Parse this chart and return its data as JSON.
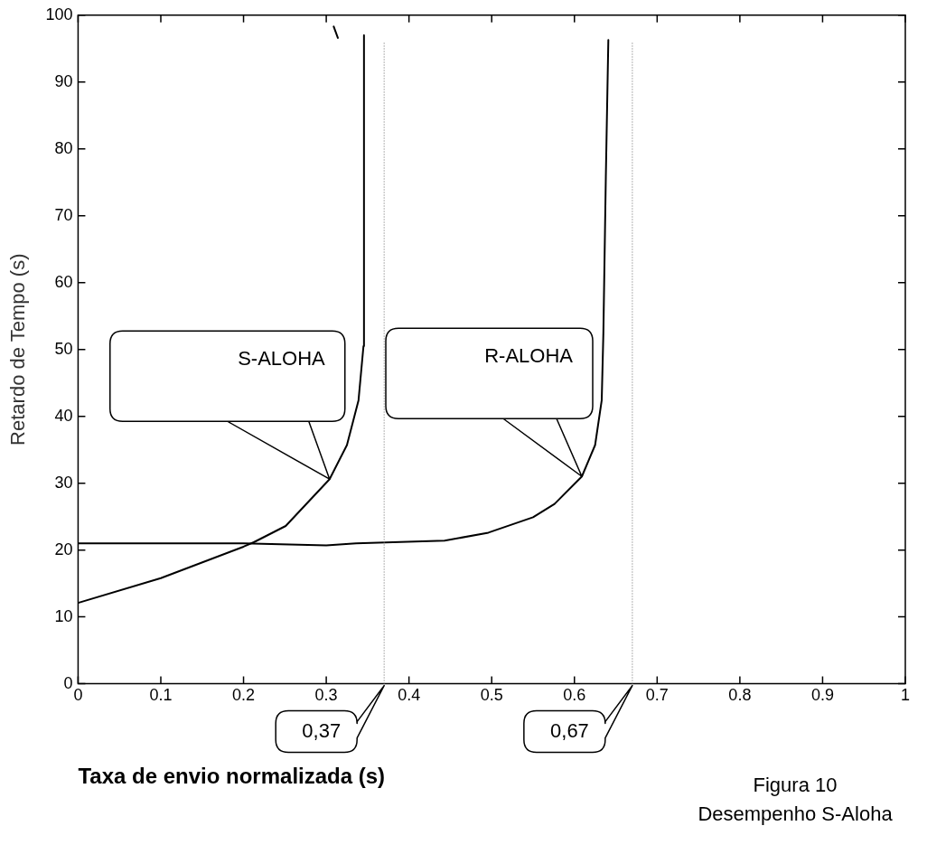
{
  "chart_data": {
    "type": "line",
    "xlabel": "Taxa de envio normalizada (s)",
    "ylabel": "Retardo de Tempo (s)",
    "xlim": [
      0,
      1
    ],
    "ylim": [
      0,
      100
    ],
    "xticks": [
      0,
      0.1,
      0.2,
      0.3,
      0.4,
      0.5,
      0.6,
      0.7,
      0.8,
      0.9,
      1
    ],
    "yticks": [
      0,
      10,
      20,
      30,
      40,
      50,
      60,
      70,
      80,
      90,
      100
    ],
    "grid": false,
    "legend": false,
    "marker": "none",
    "line_style": "solid",
    "series": [
      {
        "name": "S-ALOHA",
        "color": "#000000",
        "x": [
          0,
          0.1,
          0.2,
          0.213,
          0.251,
          0.304,
          0.325,
          0.339,
          0.345,
          0.3456,
          null,
          0.309,
          0.314
        ],
        "values": [
          12.1,
          15.8,
          20.5,
          21.2,
          23.6,
          30.6,
          35.7,
          42.4,
          50.5,
          97,
          null,
          98.3,
          96.6
        ]
      },
      {
        "name": "R-ALOHA",
        "color": "#000000",
        "x": [
          0,
          0.1,
          0.2,
          0.3,
          0.336,
          0.443,
          0.496,
          0.55,
          0.576,
          0.609,
          0.625,
          0.633,
          0.635,
          0.638,
          0.641
        ],
        "values": [
          21.0,
          21.0,
          21.0,
          20.7,
          21.0,
          21.4,
          22.6,
          24.9,
          26.9,
          31.0,
          35.7,
          42.4,
          52.5,
          76,
          96.3
        ]
      }
    ],
    "ref_lines": [
      {
        "axis": "x",
        "value": 0.37,
        "label": "0,37",
        "color": "#808080",
        "line_style": "dotted"
      },
      {
        "axis": "x",
        "value": 0.67,
        "label": "0,67",
        "color": "#808080",
        "line_style": "dotted"
      }
    ],
    "annotations": [
      "Figura 10",
      "Desempenho S-Aloha"
    ]
  }
}
